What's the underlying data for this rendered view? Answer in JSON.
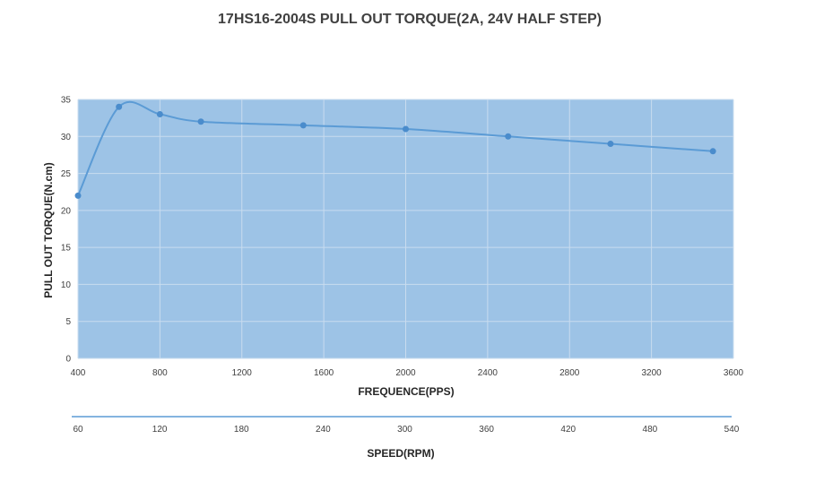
{
  "chart_data": {
    "type": "line",
    "title": "17HS16-2004S PULL OUT TORQUE(2A, 24V HALF STEP)",
    "xlabel": "FREQUENCE(PPS)",
    "ylabel": "PULL OUT TORQUE(N.cm)",
    "xlim": [
      400,
      3600
    ],
    "ylim": [
      0,
      35
    ],
    "x_ticks": [
      "400",
      "800",
      "1200",
      "1600",
      "2000",
      "2400",
      "2800",
      "3200",
      "3600"
    ],
    "y_ticks": [
      "0",
      "5",
      "10",
      "15",
      "20",
      "25",
      "30",
      "35"
    ],
    "grid": true,
    "series": [
      {
        "x": [
          400,
          600,
          800,
          1000,
          1500,
          2000,
          2500,
          3000,
          3500
        ],
        "y": [
          22,
          34,
          33,
          32,
          31.5,
          31,
          30,
          29,
          28
        ]
      }
    ],
    "secondary_axis": {
      "label": "SPEED(RPM)",
      "ticks": [
        "60",
        "120",
        "180",
        "240",
        "300",
        "360",
        "420",
        "480",
        "540"
      ]
    },
    "colors": {
      "plot_background": "#9dc3e6",
      "gridline": "#c9dcef",
      "line": "#5b9bd5",
      "marker": "#4a8ccc"
    }
  }
}
